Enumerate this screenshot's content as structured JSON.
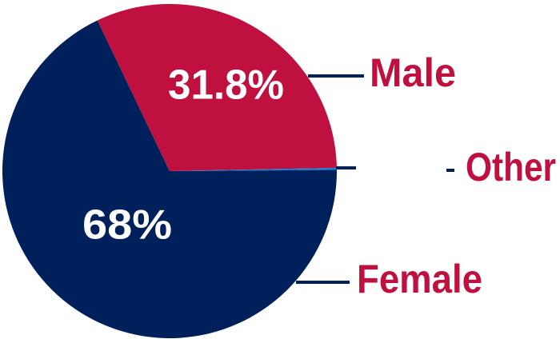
{
  "chart_data": {
    "type": "pie",
    "categories": [
      "Male",
      "Other",
      "Female"
    ],
    "values": [
      31.8,
      0.2,
      68
    ],
    "value_labels": [
      "31.8%",
      null,
      "68%"
    ],
    "colors": [
      "#c0103f",
      "#1a7ad0",
      "#00205b"
    ]
  }
}
